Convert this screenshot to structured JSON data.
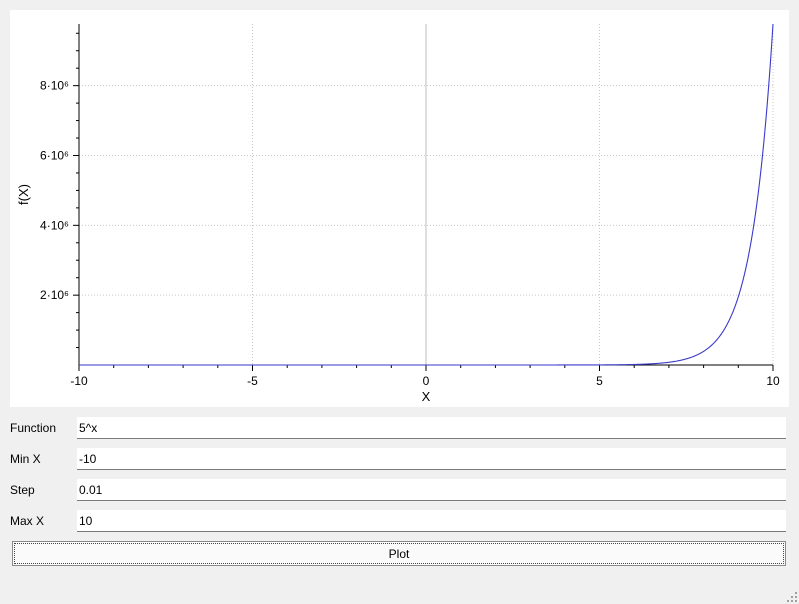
{
  "plot": {
    "curve_color": "#3a3acc",
    "grid_color": "#c8c8c8",
    "zero_line_color": "#bdbdbd"
  },
  "chart_data": {
    "type": "line",
    "function": "5^x",
    "xlabel": "X",
    "ylabel": "f(X)",
    "xlim": [
      -10,
      10
    ],
    "ylim": [
      0,
      9765625
    ],
    "x_ticks": [
      -10,
      -5,
      0,
      5,
      10
    ],
    "x_tick_labels": [
      "-10",
      "-5",
      "0",
      "5",
      "10"
    ],
    "y_ticks": [
      2000000,
      4000000,
      6000000,
      8000000
    ],
    "y_tick_labels": [
      "2·10⁶",
      "4·10⁶",
      "6·10⁶",
      "8·10⁶"
    ],
    "grid": true,
    "series": [
      {
        "x": [
          -10,
          0,
          5,
          6,
          7,
          7.5,
          8,
          8.5,
          9,
          9.25,
          9.5,
          9.75,
          10
        ],
        "y": [
          0,
          1,
          3125,
          15625,
          78125,
          174693,
          390625,
          873464,
          1953125,
          2920866,
          4367320,
          6531003,
          9765625
        ]
      }
    ]
  },
  "form": {
    "function_label": "Function",
    "function_value": "5^x",
    "minx_label": "Min X",
    "minx_value": "-10",
    "step_label": "Step",
    "step_value": "0.01",
    "maxx_label": "Max X",
    "maxx_value": "10"
  },
  "plot_button_label": "Plot"
}
